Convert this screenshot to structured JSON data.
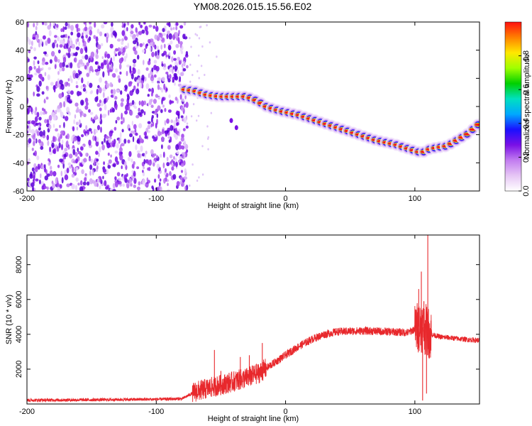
{
  "title": "YM08.2026.015.15.56.E02",
  "chart_data": [
    {
      "type": "heatmap",
      "name": "spectrogram",
      "xlabel": "Height of straight line (km)",
      "ylabel": "Frequency (Hz)",
      "xlim": [
        -200,
        150
      ],
      "ylim": [
        -60,
        60
      ],
      "xticks": [
        -200,
        -100,
        0,
        100
      ],
      "yticks": [
        -60,
        -40,
        -20,
        0,
        20,
        40,
        60
      ],
      "xtick_labels": [
        "-200",
        "-100",
        "0",
        "100"
      ],
      "ytick_labels": [
        "-60",
        "-40",
        "-20",
        "0",
        "20",
        "40",
        "60"
      ],
      "noise_region_x": [
        -200,
        -76
      ],
      "ridge": {
        "x": [
          -78,
          -70,
          -60,
          -50,
          -40,
          -30,
          -22,
          -15,
          -5,
          10,
          30,
          50,
          70,
          85,
          95,
          105,
          112,
          125,
          140,
          150
        ],
        "y": [
          12,
          11,
          8,
          7,
          7,
          7,
          4,
          0,
          -3,
          -6,
          -12,
          -18,
          -24,
          -27,
          -30,
          -33,
          -30,
          -28,
          -20,
          -12
        ]
      },
      "stray_points": [
        {
          "x": -42,
          "y": -10
        },
        {
          "x": -38,
          "y": -15
        }
      ],
      "colorbar": {
        "label": "Normalized spectral amplitude",
        "range": [
          0.0,
          1.0
        ],
        "ticks": [
          0.0,
          0.2,
          0.4,
          0.6,
          0.8
        ],
        "tick_labels": [
          "0.0",
          "0.2",
          "0.4",
          "0.6",
          "0.8"
        ],
        "colors": [
          "#ffffff",
          "#e6c6f5",
          "#c27cf0",
          "#7a10e6",
          "#1a10ff",
          "#00a8ff",
          "#00e0c0",
          "#00d000",
          "#a0ff00",
          "#ffe800",
          "#ff8000",
          "#ff1010"
        ]
      }
    },
    {
      "type": "line",
      "name": "snr",
      "xlabel": "Height of straight line (km)",
      "ylabel": "SNR (10 * v/v)",
      "xlim": [
        -200,
        150
      ],
      "ylim": [
        0,
        9700
      ],
      "xticks": [
        -200,
        -100,
        0,
        100
      ],
      "yticks": [
        2000,
        4000,
        6000,
        8000
      ],
      "xtick_labels": [
        "-200",
        "-100",
        "0",
        "100"
      ],
      "ytick_labels": [
        "2000",
        "4000",
        "6000",
        "8000"
      ],
      "color": "#e8282c",
      "baseline": {
        "x": [
          -200,
          -150,
          -100,
          -80,
          -70,
          -65,
          -60,
          -50,
          -40,
          -30,
          -20,
          -10,
          0,
          10,
          20,
          30,
          40,
          60,
          80,
          95,
          100,
          104,
          108,
          112,
          120,
          140,
          150
        ],
        "y": [
          220,
          240,
          270,
          300,
          700,
          800,
          900,
          1100,
          1300,
          1500,
          1800,
          2300,
          2800,
          3300,
          3700,
          4000,
          4150,
          4200,
          4150,
          4100,
          4300,
          4500,
          4300,
          4000,
          3850,
          3700,
          3650
        ]
      },
      "spikes": [
        {
          "x": -55,
          "y": 3100
        },
        {
          "x": -50,
          "y": 1900
        },
        {
          "x": -35,
          "y": 2700
        },
        {
          "x": -28,
          "y": 2800
        },
        {
          "x": -18,
          "y": 3500
        },
        {
          "x": 103,
          "y": 6600
        },
        {
          "x": 105,
          "y": 7600
        },
        {
          "x": 107,
          "y": 5900
        },
        {
          "x": 110,
          "y": 9700
        },
        {
          "x": 106,
          "y": 200
        },
        {
          "x": 109,
          "y": 600
        }
      ]
    }
  ]
}
